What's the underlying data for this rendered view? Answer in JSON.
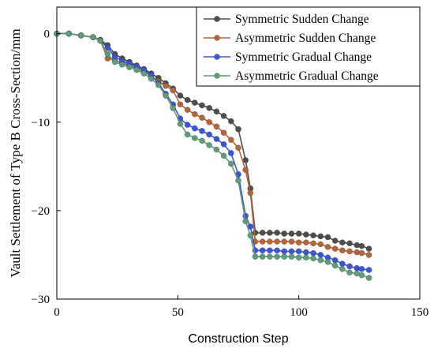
{
  "chart_data": {
    "type": "line",
    "title": "",
    "xlabel": "Construction Step",
    "ylabel": "Vault Settlement of Type B Cross-Section/mm",
    "xlim": [
      0,
      150
    ],
    "ylim": [
      -30,
      3
    ],
    "xticks": [
      0,
      50,
      100,
      150
    ],
    "yticks": [
      0,
      -10,
      -20,
      -30
    ],
    "grid": false,
    "legend_position": "top-right",
    "series": [
      {
        "name": "Symmetric Sudden Change",
        "color": "#4d4d4d",
        "x": [
          0,
          5,
          10,
          15,
          18,
          21,
          24,
          27,
          30,
          33,
          36,
          39,
          42,
          45,
          48,
          51,
          54,
          57,
          60,
          63,
          66,
          69,
          72,
          75,
          78,
          80,
          82,
          85,
          88,
          91,
          94,
          97,
          100,
          103,
          106,
          109,
          112,
          115,
          118,
          121,
          124,
          126,
          129
        ],
        "y": [
          0,
          0,
          -0.2,
          -0.4,
          -0.7,
          -1.3,
          -2.3,
          -2.8,
          -3.2,
          -3.6,
          -4.0,
          -4.5,
          -5.0,
          -5.6,
          -6.2,
          -7.0,
          -7.5,
          -7.8,
          -8.1,
          -8.4,
          -8.8,
          -9.3,
          -9.9,
          -10.8,
          -14.3,
          -17.5,
          -22.5,
          -22.5,
          -22.5,
          -22.5,
          -22.6,
          -22.6,
          -22.6,
          -22.7,
          -22.8,
          -22.9,
          -23.0,
          -23.4,
          -23.6,
          -23.7,
          -23.9,
          -24.0,
          -24.3
        ]
      },
      {
        "name": "Asymmetric Sudden Change",
        "color": "#b5653a",
        "x": [
          0,
          5,
          10,
          15,
          18,
          21,
          24,
          27,
          30,
          33,
          36,
          39,
          42,
          45,
          48,
          51,
          54,
          57,
          60,
          63,
          66,
          69,
          72,
          75,
          78,
          80,
          82,
          85,
          88,
          91,
          94,
          97,
          100,
          103,
          106,
          109,
          112,
          115,
          118,
          121,
          124,
          126,
          129
        ],
        "y": [
          0,
          0,
          -0.2,
          -0.4,
          -0.8,
          -2.8,
          -3.0,
          -3.3,
          -3.6,
          -3.9,
          -4.3,
          -4.8,
          -5.4,
          -5.9,
          -6.4,
          -8.0,
          -8.6,
          -9.1,
          -9.5,
          -10.0,
          -10.5,
          -11.2,
          -12.0,
          -12.9,
          -15.4,
          -18.0,
          -23.5,
          -23.5,
          -23.5,
          -23.5,
          -23.5,
          -23.5,
          -23.6,
          -23.6,
          -23.7,
          -23.8,
          -24.1,
          -24.3,
          -24.5,
          -24.6,
          -24.7,
          -24.8,
          -25.0
        ]
      },
      {
        "name": "Symmetric Gradual Change",
        "color": "#3a55d6",
        "x": [
          0,
          5,
          10,
          15,
          18,
          21,
          24,
          27,
          30,
          33,
          36,
          39,
          42,
          45,
          48,
          51,
          54,
          57,
          60,
          63,
          66,
          69,
          72,
          75,
          78,
          80,
          82,
          85,
          88,
          91,
          94,
          97,
          100,
          103,
          106,
          109,
          112,
          115,
          118,
          121,
          124,
          126,
          129
        ],
        "y": [
          0,
          0,
          -0.2,
          -0.4,
          -0.8,
          -1.6,
          -2.6,
          -3.1,
          -3.4,
          -3.7,
          -4.1,
          -4.7,
          -5.6,
          -6.8,
          -8.0,
          -9.6,
          -10.3,
          -10.7,
          -11.0,
          -11.4,
          -11.9,
          -12.5,
          -13.5,
          -15.9,
          -20.6,
          -21.8,
          -24.5,
          -24.5,
          -24.5,
          -24.5,
          -24.6,
          -24.6,
          -24.6,
          -24.7,
          -24.8,
          -25.0,
          -25.3,
          -25.6,
          -26.0,
          -26.3,
          -26.5,
          -26.6,
          -26.7
        ]
      },
      {
        "name": "Asymmetric Gradual Change",
        "color": "#5f9c78",
        "x": [
          0,
          5,
          10,
          15,
          18,
          21,
          24,
          27,
          30,
          33,
          36,
          39,
          42,
          45,
          48,
          51,
          54,
          57,
          60,
          63,
          66,
          69,
          72,
          75,
          78,
          80,
          82,
          85,
          88,
          91,
          94,
          97,
          100,
          103,
          106,
          109,
          112,
          115,
          118,
          121,
          124,
          126,
          129
        ],
        "y": [
          0,
          0,
          -0.2,
          -0.4,
          -0.8,
          -2.3,
          -3.2,
          -3.5,
          -3.8,
          -4.1,
          -4.5,
          -5.1,
          -5.8,
          -7.0,
          -8.4,
          -10.2,
          -11.4,
          -11.8,
          -12.1,
          -12.6,
          -13.1,
          -13.8,
          -14.7,
          -16.6,
          -21.2,
          -22.8,
          -25.2,
          -25.2,
          -25.2,
          -25.2,
          -25.2,
          -25.2,
          -25.3,
          -25.3,
          -25.4,
          -25.6,
          -25.8,
          -26.2,
          -26.6,
          -27.0,
          -27.1,
          -27.3,
          -27.6
        ]
      }
    ]
  }
}
